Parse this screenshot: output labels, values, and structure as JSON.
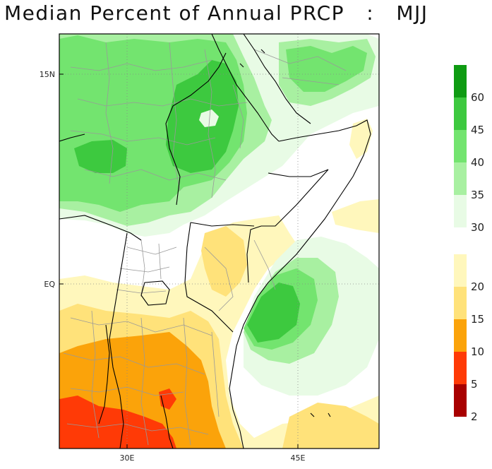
{
  "title": "Median Percent of Annual PRCP   :   MJJ",
  "axes": {
    "lat_labels": [
      "15N",
      "EQ"
    ],
    "lon_labels": [
      "30E",
      "45E"
    ]
  },
  "legend": {
    "upper": {
      "colors": [
        "#0e9b12",
        "#3dc93f",
        "#73e46f",
        "#a8f0a1",
        "#e8fbe5"
      ],
      "labels": [
        "60",
        "45",
        "40",
        "35",
        "30"
      ]
    },
    "lower": {
      "colors": [
        "#fff7bc",
        "#ffe27a",
        "#fba30a",
        "#ff3a06",
        "#a80000"
      ],
      "labels": [
        "20",
        "15",
        "10",
        "5",
        "2"
      ]
    }
  },
  "colors": {
    "border": "#000000",
    "admin_lines": "#999999",
    "grid": "#888888"
  }
}
